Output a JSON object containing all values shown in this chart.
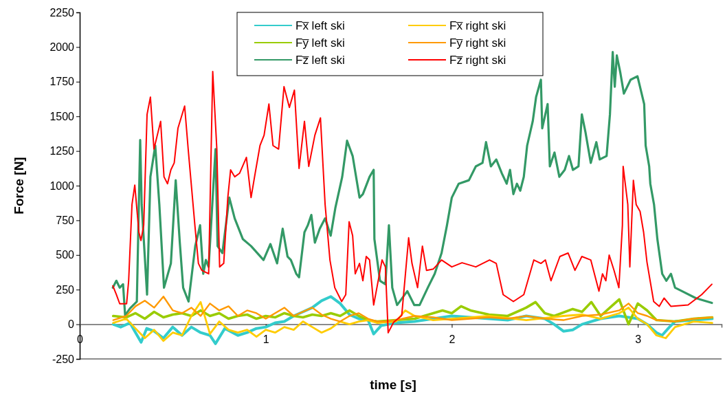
{
  "chart_data": {
    "type": "line",
    "xlabel": "time [s]",
    "ylabel": "Force [N]",
    "xlim": [
      0,
      3.45
    ],
    "xticks": [
      0,
      1,
      2,
      3
    ],
    "ylim": [
      -250,
      2250
    ],
    "yticks": [
      -250,
      0,
      250,
      500,
      750,
      1000,
      1250,
      1500,
      1750,
      2000,
      2250
    ],
    "grid": false,
    "legend": "top",
    "marker": "none",
    "line_style": "solid",
    "series": [
      {
        "name": "Fx̅  left ski",
        "color": "#33cccc",
        "x": [
          0.18,
          0.22,
          0.27,
          0.3,
          0.33,
          0.36,
          0.4,
          0.45,
          0.5,
          0.55,
          0.6,
          0.65,
          0.7,
          0.73,
          0.78,
          0.85,
          0.9,
          0.95,
          1.0,
          1.05,
          1.1,
          1.15,
          1.2,
          1.25,
          1.3,
          1.35,
          1.4,
          1.45,
          1.5,
          1.55,
          1.58,
          1.62,
          1.7,
          1.8,
          1.9,
          2.0,
          2.1,
          2.2,
          2.3,
          2.4,
          2.5,
          2.55,
          2.6,
          2.65,
          2.7,
          2.8,
          2.9,
          3.0,
          3.05,
          3.1,
          3.13,
          3.17,
          3.2,
          3.3,
          3.4
        ],
        "values": [
          0,
          -20,
          10,
          -60,
          -130,
          -30,
          -50,
          -100,
          -20,
          -80,
          -20,
          -60,
          -80,
          -140,
          -30,
          -80,
          -60,
          -30,
          -20,
          10,
          20,
          60,
          90,
          120,
          170,
          200,
          150,
          70,
          40,
          30,
          -70,
          -10,
          10,
          20,
          40,
          60,
          50,
          40,
          30,
          60,
          40,
          0,
          -50,
          -40,
          0,
          40,
          60,
          40,
          0,
          -60,
          -80,
          -20,
          20,
          30,
          40
        ]
      },
      {
        "name": "Fy̅  left ski",
        "color": "#99cc00",
        "x": [
          0.18,
          0.25,
          0.3,
          0.35,
          0.4,
          0.45,
          0.5,
          0.55,
          0.6,
          0.65,
          0.7,
          0.75,
          0.8,
          0.85,
          0.9,
          0.95,
          1.0,
          1.05,
          1.1,
          1.15,
          1.2,
          1.25,
          1.3,
          1.35,
          1.4,
          1.45,
          1.5,
          1.55,
          1.6,
          1.7,
          1.8,
          1.9,
          1.95,
          2.0,
          2.05,
          2.1,
          2.2,
          2.3,
          2.4,
          2.45,
          2.5,
          2.55,
          2.65,
          2.7,
          2.75,
          2.8,
          2.85,
          2.9,
          2.95,
          3.0,
          3.05,
          3.1,
          3.2,
          3.3,
          3.4
        ],
        "values": [
          60,
          50,
          80,
          40,
          90,
          50,
          70,
          80,
          60,
          100,
          60,
          80,
          40,
          60,
          70,
          40,
          60,
          50,
          80,
          60,
          50,
          70,
          60,
          80,
          60,
          100,
          60,
          30,
          20,
          30,
          40,
          80,
          100,
          80,
          130,
          100,
          70,
          60,
          120,
          160,
          80,
          60,
          110,
          90,
          160,
          60,
          120,
          180,
          0,
          150,
          100,
          30,
          20,
          40,
          50
        ]
      },
      {
        "name": "Fz̅  left ski",
        "color": "#339966",
        "x": [
          0.178,
          0.197,
          0.215,
          0.233,
          0.244,
          0.27,
          0.307,
          0.325,
          0.333,
          0.362,
          0.38,
          0.406,
          0.428,
          0.453,
          0.49,
          0.516,
          0.538,
          0.556,
          0.585,
          0.621,
          0.647,
          0.664,
          0.678,
          0.693,
          0.73,
          0.741,
          0.767,
          0.804,
          0.833,
          0.877,
          0.921,
          0.988,
          1.025,
          1.061,
          1.091,
          1.117,
          1.135,
          1.164,
          1.179,
          1.208,
          1.226,
          1.245,
          1.264,
          1.29,
          1.319,
          1.349,
          1.374,
          1.411,
          1.437,
          1.467,
          1.504,
          1.522,
          1.558,
          1.58,
          1.584,
          1.614,
          1.643,
          1.662,
          1.68,
          1.706,
          1.761,
          1.798,
          1.827,
          1.871,
          1.908,
          1.945,
          1.974,
          2.0,
          2.037,
          2.092,
          2.129,
          2.165,
          2.184,
          2.21,
          2.239,
          2.269,
          2.295,
          2.313,
          2.331,
          2.35,
          2.368,
          2.387,
          2.405,
          2.435,
          2.453,
          2.479,
          2.486,
          2.515,
          2.527,
          2.552,
          2.578,
          2.607,
          2.63,
          2.651,
          2.681,
          2.699,
          2.718,
          2.747,
          2.777,
          2.795,
          2.832,
          2.85,
          2.865,
          2.876,
          2.887,
          2.906,
          2.925,
          2.961,
          2.998,
          3.016,
          3.034,
          3.042,
          3.061,
          3.067,
          3.087,
          3.105,
          3.131,
          3.153,
          3.178,
          3.2,
          3.237,
          3.311,
          3.398
        ],
        "values": [
          264,
          314,
          264,
          289,
          64,
          114,
          164,
          1329,
          864,
          214,
          1064,
          1289,
          864,
          264,
          439,
          1039,
          589,
          264,
          164,
          564,
          714,
          364,
          464,
          414,
          1264,
          564,
          514,
          914,
          764,
          614,
          564,
          464,
          579,
          439,
          689,
          489,
          464,
          364,
          339,
          664,
          714,
          789,
          589,
          689,
          764,
          639,
          839,
          1064,
          1324,
          1214,
          914,
          939,
          1064,
          1114,
          614,
          314,
          289,
          714,
          264,
          139,
          239,
          139,
          139,
          264,
          364,
          514,
          714,
          914,
          1014,
          1039,
          1139,
          1164,
          1314,
          1139,
          1189,
          1089,
          1014,
          1114,
          939,
          1014,
          964,
          1064,
          1289,
          1464,
          1639,
          1764,
          1414,
          1589,
          1139,
          1239,
          1064,
          1114,
          1214,
          1114,
          1139,
          1514,
          1389,
          1164,
          1314,
          1189,
          1214,
          1514,
          1964,
          1714,
          1939,
          1814,
          1664,
          1764,
          1789,
          1689,
          1589,
          1289,
          1139,
          1014,
          864,
          614,
          364,
          314,
          364,
          264,
          239,
          189,
          154
        ]
      },
      {
        "name": "Fx̅  right ski",
        "color": "#ffcc00",
        "x": [
          0.18,
          0.25,
          0.3,
          0.35,
          0.4,
          0.45,
          0.5,
          0.55,
          0.6,
          0.65,
          0.7,
          0.75,
          0.8,
          0.85,
          0.9,
          0.95,
          1.0,
          1.05,
          1.1,
          1.15,
          1.2,
          1.25,
          1.3,
          1.35,
          1.4,
          1.45,
          1.5,
          1.55,
          1.6,
          1.7,
          1.75,
          1.8,
          1.9,
          2.0,
          2.2,
          2.4,
          2.6,
          2.7,
          2.8,
          2.9,
          2.95,
          3.0,
          3.05,
          3.1,
          3.15,
          3.2,
          3.3,
          3.4
        ],
        "values": [
          10,
          40,
          -30,
          -100,
          -40,
          -120,
          -60,
          -80,
          60,
          160,
          -70,
          20,
          -40,
          -60,
          -40,
          -90,
          -40,
          -60,
          -20,
          -40,
          20,
          -20,
          -60,
          -30,
          20,
          0,
          20,
          30,
          10,
          20,
          100,
          60,
          30,
          40,
          60,
          30,
          60,
          70,
          40,
          80,
          120,
          40,
          0,
          -80,
          -100,
          -20,
          20,
          10
        ]
      },
      {
        "name": "Fy̅  right ski",
        "color": "#ff9900",
        "x": [
          0.18,
          0.25,
          0.3,
          0.35,
          0.4,
          0.45,
          0.5,
          0.55,
          0.6,
          0.65,
          0.7,
          0.75,
          0.8,
          0.85,
          0.9,
          0.95,
          1.0,
          1.05,
          1.1,
          1.15,
          1.2,
          1.25,
          1.3,
          1.35,
          1.4,
          1.45,
          1.5,
          1.55,
          1.6,
          1.65,
          1.7,
          1.8,
          1.9,
          2.0,
          2.1,
          2.2,
          2.3,
          2.4,
          2.5,
          2.6,
          2.7,
          2.8,
          2.9,
          2.95,
          3.0,
          3.05,
          3.1,
          3.2,
          3.3,
          3.4
        ],
        "values": [
          30,
          60,
          130,
          170,
          120,
          200,
          100,
          80,
          120,
          60,
          150,
          100,
          130,
          60,
          100,
          80,
          40,
          80,
          120,
          60,
          90,
          120,
          70,
          40,
          20,
          60,
          80,
          40,
          20,
          20,
          30,
          60,
          50,
          30,
          40,
          50,
          40,
          60,
          40,
          30,
          60,
          70,
          100,
          150,
          80,
          60,
          30,
          20,
          40,
          50
        ]
      },
      {
        "name": "Fz̅  right ski",
        "color": "#ff0000",
        "x": [
          0.178,
          0.197,
          0.215,
          0.252,
          0.263,
          0.281,
          0.296,
          0.318,
          0.329,
          0.344,
          0.362,
          0.38,
          0.399,
          0.417,
          0.435,
          0.453,
          0.472,
          0.49,
          0.508,
          0.528,
          0.564,
          0.583,
          0.619,
          0.638,
          0.656,
          0.693,
          0.715,
          0.737,
          0.752,
          0.774,
          0.796,
          0.811,
          0.833,
          0.859,
          0.896,
          0.921,
          0.943,
          0.969,
          0.991,
          1.017,
          1.039,
          1.069,
          1.098,
          1.127,
          1.154,
          1.179,
          1.208,
          1.231,
          1.264,
          1.294,
          1.319,
          1.345,
          1.371,
          1.408,
          1.43,
          1.448,
          1.467,
          1.481,
          1.504,
          1.522,
          1.54,
          1.558,
          1.58,
          1.625,
          1.643,
          1.658,
          1.687,
          1.731,
          1.768,
          1.786,
          1.816,
          1.842,
          1.864,
          1.901,
          1.945,
          2.0,
          2.055,
          2.129,
          2.203,
          2.239,
          2.276,
          2.331,
          2.387,
          2.441,
          2.479,
          2.503,
          2.533,
          2.581,
          2.625,
          2.662,
          2.699,
          2.747,
          2.791,
          2.81,
          2.828,
          2.846,
          2.872,
          2.898,
          2.917,
          2.921,
          2.946,
          2.957,
          2.976,
          2.991,
          3.012,
          3.031,
          3.049,
          3.085,
          3.115,
          3.141,
          3.178,
          3.27,
          3.343,
          3.398
        ],
        "values": [
          278,
          214,
          148,
          148,
          313,
          864,
          1004,
          664,
          604,
          714,
          1514,
          1639,
          1264,
          1364,
          1464,
          1064,
          1014,
          1114,
          1164,
          1414,
          1574,
          1264,
          714,
          439,
          389,
          364,
          1823,
          1264,
          414,
          439,
          914,
          1114,
          1064,
          1089,
          1204,
          914,
          1089,
          1289,
          1364,
          1589,
          1289,
          1264,
          1714,
          1564,
          1689,
          1124,
          1464,
          1139,
          1364,
          1489,
          864,
          464,
          264,
          164,
          214,
          739,
          639,
          364,
          439,
          314,
          489,
          464,
          139,
          464,
          414,
          -61,
          14,
          64,
          624,
          439,
          264,
          564,
          389,
          399,
          464,
          414,
          444,
          414,
          464,
          439,
          214,
          164,
          214,
          464,
          439,
          464,
          314,
          489,
          514,
          389,
          489,
          464,
          239,
          364,
          314,
          499,
          389,
          264,
          714,
          1139,
          864,
          414,
          1039,
          864,
          814,
          664,
          449,
          164,
          129,
          189,
          129,
          139,
          214,
          289
        ]
      }
    ]
  }
}
